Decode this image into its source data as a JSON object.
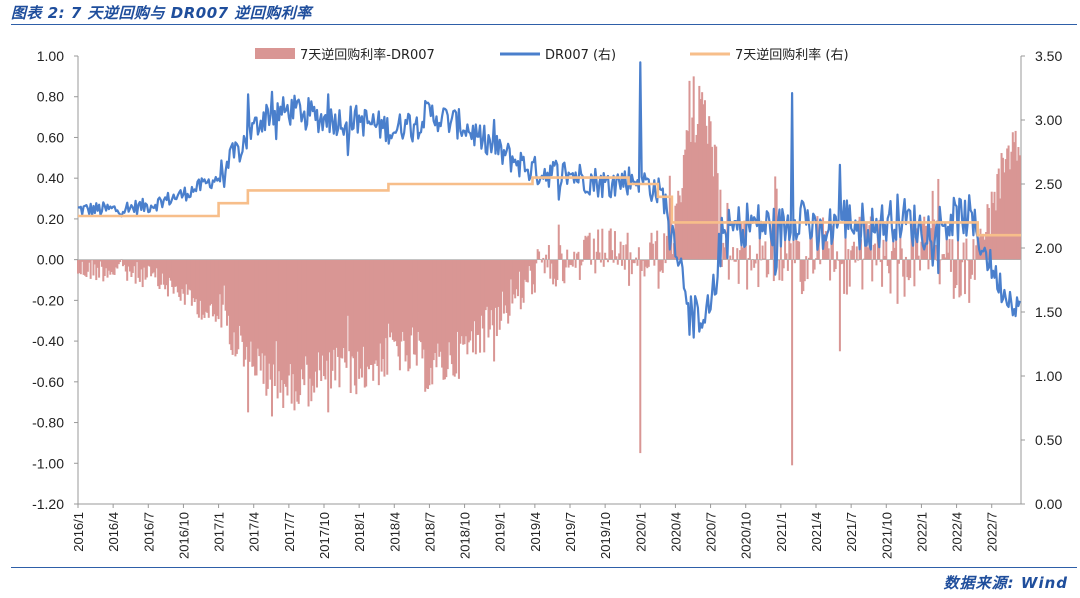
{
  "header": {
    "title": "图表 2: 7 天逆回购与 DR007 逆回购利率"
  },
  "footer": {
    "source": "数据来源: Wind"
  },
  "colors": {
    "spread": "#d99694",
    "dr007": "#4a7fcc",
    "repo": "#f7be8a",
    "axis": "#999999",
    "accent": "#1f4e9c"
  },
  "chart_data": {
    "type": "line",
    "title": "",
    "legend": [
      {
        "name": "7天逆回购利率-DR007",
        "kind": "area",
        "axis": "left"
      },
      {
        "name": "DR007 (右)",
        "kind": "line",
        "axis": "right"
      },
      {
        "name": "7天逆回购利率 (右)",
        "kind": "line",
        "axis": "right"
      }
    ],
    "legend_position": "top",
    "left_axis": {
      "range": [
        -1.2,
        1.0
      ],
      "ticks": [
        "1.00",
        "0.80",
        "0.60",
        "0.40",
        "0.20",
        "0.00",
        "-0.20",
        "-0.40",
        "-0.60",
        "-0.80",
        "-1.00",
        "-1.20"
      ]
    },
    "right_axis": {
      "range": [
        0.0,
        3.5
      ],
      "ticks": [
        "3.50",
        "3.00",
        "2.50",
        "2.00",
        "1.50",
        "1.00",
        "0.50",
        "0.00"
      ]
    },
    "x_ticks": [
      "2016/1",
      "2016/4",
      "2016/7",
      "2016/10",
      "2017/1",
      "2017/4",
      "2017/7",
      "2017/10",
      "2018/1",
      "2018/4",
      "2018/7",
      "2018/10",
      "2019/1",
      "2019/4",
      "2019/7",
      "2019/10",
      "2020/1",
      "2020/4",
      "2020/7",
      "2020/10",
      "2021/1",
      "2021/4",
      "2021/7",
      "2021/10",
      "2022/1",
      "2022/4",
      "2022/7"
    ],
    "repo_rate_steps": [
      {
        "t": 0.0,
        "v": 2.25
      },
      {
        "t": 12.0,
        "v": 2.35
      },
      {
        "t": 14.5,
        "v": 2.45
      },
      {
        "t": 26.5,
        "v": 2.5
      },
      {
        "t": 38.8,
        "v": 2.55
      },
      {
        "t": 47.0,
        "v": 2.5
      },
      {
        "t": 49.5,
        "v": 2.4
      },
      {
        "t": 50.7,
        "v": 2.2
      },
      {
        "t": 76.8,
        "v": 2.1
      },
      {
        "t": 80.5,
        "v": 2.1
      }
    ],
    "dr007_anchors": [
      {
        "t": 0,
        "v": 2.3
      },
      {
        "t": 3,
        "v": 2.3
      },
      {
        "t": 6,
        "v": 2.33
      },
      {
        "t": 9,
        "v": 2.42
      },
      {
        "t": 12,
        "v": 2.55
      },
      {
        "t": 14,
        "v": 2.8
      },
      {
        "t": 16,
        "v": 3.05
      },
      {
        "t": 19,
        "v": 3.08
      },
      {
        "t": 21,
        "v": 3.0
      },
      {
        "t": 24,
        "v": 3.0
      },
      {
        "t": 27,
        "v": 2.92
      },
      {
        "t": 30,
        "v": 3.05
      },
      {
        "t": 33,
        "v": 2.95
      },
      {
        "t": 36,
        "v": 2.75
      },
      {
        "t": 39,
        "v": 2.6
      },
      {
        "t": 42,
        "v": 2.58
      },
      {
        "t": 45,
        "v": 2.5
      },
      {
        "t": 48,
        "v": 2.55
      },
      {
        "t": 50,
        "v": 2.4
      },
      {
        "t": 51,
        "v": 2.05
      },
      {
        "t": 52,
        "v": 1.65
      },
      {
        "t": 53,
        "v": 1.45
      },
      {
        "t": 54,
        "v": 1.55
      },
      {
        "t": 55,
        "v": 2.1
      },
      {
        "t": 57,
        "v": 2.2
      },
      {
        "t": 60,
        "v": 2.15
      },
      {
        "t": 62,
        "v": 2.3
      },
      {
        "t": 63,
        "v": 2.05
      },
      {
        "t": 65,
        "v": 2.25
      },
      {
        "t": 68,
        "v": 2.15
      },
      {
        "t": 70,
        "v": 2.25
      },
      {
        "t": 72,
        "v": 2.15
      },
      {
        "t": 74,
        "v": 2.2
      },
      {
        "t": 76,
        "v": 2.25
      },
      {
        "t": 77,
        "v": 2.05
      },
      {
        "t": 78,
        "v": 1.85
      },
      {
        "t": 79,
        "v": 1.65
      },
      {
        "t": 80,
        "v": 1.58
      },
      {
        "t": 81,
        "v": 1.55
      }
    ],
    "dr007_spikes": [
      {
        "t": 14.5,
        "v": 3.2
      },
      {
        "t": 16.5,
        "v": 3.22
      },
      {
        "t": 21.3,
        "v": 3.2
      },
      {
        "t": 28.0,
        "v": 3.0
      },
      {
        "t": 35.5,
        "v": 3.0
      },
      {
        "t": 48.0,
        "v": 3.45
      },
      {
        "t": 52.5,
        "v": 1.3
      },
      {
        "t": 61.0,
        "v": 3.21
      },
      {
        "t": 65.0,
        "v": 2.65
      },
      {
        "t": 79.0,
        "v": 1.6
      }
    ]
  }
}
